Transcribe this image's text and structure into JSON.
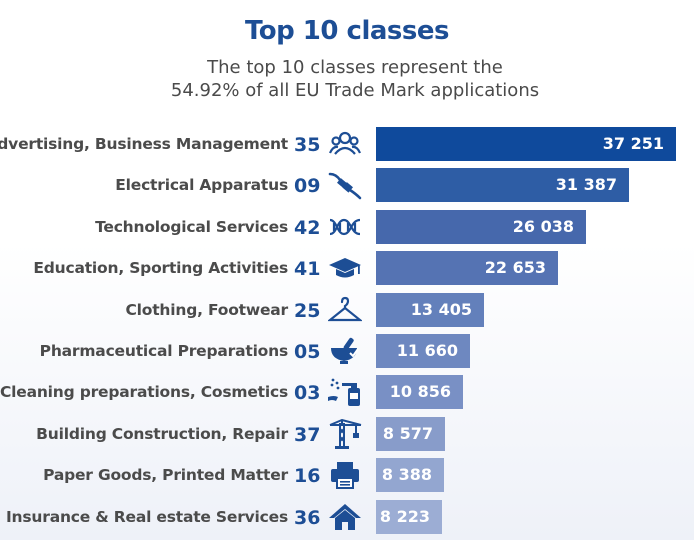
{
  "chart_data": {
    "type": "bar",
    "orientation": "horizontal",
    "title": "Top 10 classes",
    "subtitle": [
      "The top 10 classes represent the",
      "54.92% of all EU Trade Mark applications"
    ],
    "categories": [
      {
        "label": "Advertising, Business Management",
        "code": "35",
        "icon": "people-group-icon",
        "color": "#0f4a9c"
      },
      {
        "label": "Electrical Apparatus",
        "code": "09",
        "icon": "electric-plug-icon",
        "color": "#2e5da5"
      },
      {
        "label": "Technological Services",
        "code": "42",
        "icon": "dna-icon",
        "color": "#4668ac"
      },
      {
        "label": "Education, Sporting Activities",
        "code": "41",
        "icon": "graduation-cap-icon",
        "color": "#5573b3"
      },
      {
        "label": "Clothing, Footwear",
        "code": "25",
        "icon": "clothes-hanger-icon",
        "color": "#6380bb"
      },
      {
        "label": "Pharmaceutical Preparations",
        "code": "05",
        "icon": "mortar-pestle-icon",
        "color": "#6e88c0"
      },
      {
        "label": "Cleaning preparations, Cosmetics",
        "code": "03",
        "icon": "spray-bottle-icon",
        "color": "#7990c5"
      },
      {
        "label": "Building Construction, Repair",
        "code": "37",
        "icon": "crane-icon",
        "color": "#889cca"
      },
      {
        "label": "Paper Goods, Printed Matter",
        "code": "16",
        "icon": "printer-icon",
        "color": "#93a6d0"
      },
      {
        "label": "Insurance & Real estate Services",
        "code": "36",
        "icon": "house-icon",
        "color": "#9cadd4"
      }
    ],
    "values": [
      37251,
      31387,
      26038,
      22653,
      13405,
      11660,
      10856,
      8577,
      8388,
      8223
    ],
    "value_labels": [
      "37 251",
      "31 387",
      "26 038",
      "22 653",
      "13 405",
      "11 660",
      "10 856",
      "8 577",
      "8 388",
      "8 223"
    ],
    "xlim": [
      0,
      37251
    ],
    "grid": false,
    "legend": "none"
  },
  "colors": {
    "title": "#1d4e95",
    "code": "#1d4e95",
    "label": "#4b4b4b"
  }
}
